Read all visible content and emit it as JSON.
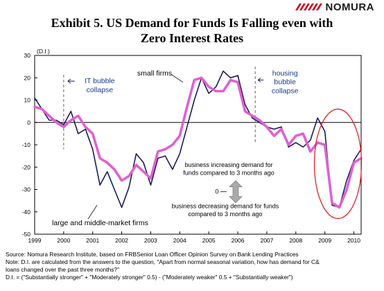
{
  "header": {
    "brand": "NOMURA",
    "title_line1": "Exhibit 5.  US Demand for Funds Is Falling even with",
    "title_line2": "Zero Interest Rates"
  },
  "notes": {
    "source": "Source: Nomura Research Institute, based on FRBSenior Loan Officer Opinion Survey on Bank Lending Practices",
    "note1": "Note: D.I. are calculated from the answers to the question, \"Apart from normal seasonal variation, how has demand for C&",
    "note2": "loans changed over the past three months?\"",
    "formula": "D.I. = (\"Substantially stronger\" + \"Moderately stronger\" 0.5) - (\"Moderately weaker\"   0.5 + \"Substantially weaker\")"
  },
  "chart_data": {
    "type": "line",
    "ylabel": "(D.I.)",
    "ylim": [
      -50,
      30
    ],
    "yticks": [
      30,
      20,
      10,
      0,
      -10,
      -20,
      -30,
      -40,
      -50
    ],
    "xlim": [
      1999.0,
      2010.25
    ],
    "xticks": [
      1999,
      2000,
      2001,
      2002,
      2003,
      2004,
      2005,
      2006,
      2007,
      2008,
      2009,
      2010
    ],
    "grid": false,
    "colors": {
      "large_firms": "#1a1a5e",
      "small_firms": "#e060d0",
      "highlight": "#dd2222"
    },
    "series": [
      {
        "name": "large and middle-market firms",
        "points": [
          [
            1999.0,
            11
          ],
          [
            1999.25,
            6
          ],
          [
            1999.5,
            1
          ],
          [
            1999.75,
            1
          ],
          [
            2000.0,
            -1
          ],
          [
            2000.25,
            5
          ],
          [
            2000.5,
            -5
          ],
          [
            2000.75,
            -3
          ],
          [
            2001.0,
            -12
          ],
          [
            2001.25,
            -28
          ],
          [
            2001.5,
            -22
          ],
          [
            2001.75,
            -30
          ],
          [
            2002.0,
            -38
          ],
          [
            2002.25,
            -29
          ],
          [
            2002.5,
            -14
          ],
          [
            2002.75,
            -18
          ],
          [
            2003.0,
            -28
          ],
          [
            2003.25,
            -16
          ],
          [
            2003.5,
            -15
          ],
          [
            2003.75,
            -21
          ],
          [
            2004.0,
            -14
          ],
          [
            2004.25,
            -2
          ],
          [
            2004.5,
            10
          ],
          [
            2004.75,
            20
          ],
          [
            2005.0,
            13
          ],
          [
            2005.25,
            16
          ],
          [
            2005.5,
            23
          ],
          [
            2005.75,
            20
          ],
          [
            2006.0,
            21
          ],
          [
            2006.25,
            8
          ],
          [
            2006.5,
            2
          ],
          [
            2006.75,
            0
          ],
          [
            2007.0,
            -2
          ],
          [
            2007.25,
            -3
          ],
          [
            2007.5,
            -2
          ],
          [
            2007.75,
            -11
          ],
          [
            2008.0,
            -9
          ],
          [
            2008.25,
            -11
          ],
          [
            2008.5,
            -8
          ],
          [
            2008.75,
            2
          ],
          [
            2009.0,
            -4
          ],
          [
            2009.25,
            -37
          ],
          [
            2009.5,
            -38
          ],
          [
            2009.75,
            -26
          ],
          [
            2010.0,
            -17
          ],
          [
            2010.25,
            -12
          ]
        ]
      },
      {
        "name": "small firms",
        "points": [
          [
            1999.0,
            7
          ],
          [
            1999.25,
            6
          ],
          [
            1999.5,
            3
          ],
          [
            1999.75,
            0
          ],
          [
            2000.0,
            -2
          ],
          [
            2000.25,
            1
          ],
          [
            2000.5,
            3
          ],
          [
            2000.75,
            -2
          ],
          [
            2001.0,
            -5
          ],
          [
            2001.25,
            -16
          ],
          [
            2001.5,
            -18
          ],
          [
            2001.75,
            -21
          ],
          [
            2002.0,
            -26
          ],
          [
            2002.25,
            -24
          ],
          [
            2002.5,
            -19
          ],
          [
            2002.75,
            -22
          ],
          [
            2003.0,
            -25
          ],
          [
            2003.25,
            -13
          ],
          [
            2003.5,
            -12
          ],
          [
            2003.75,
            -10
          ],
          [
            2004.0,
            -6
          ],
          [
            2004.25,
            7
          ],
          [
            2004.5,
            19
          ],
          [
            2004.75,
            20
          ],
          [
            2005.0,
            16
          ],
          [
            2005.25,
            14
          ],
          [
            2005.5,
            14
          ],
          [
            2005.75,
            19
          ],
          [
            2006.0,
            18
          ],
          [
            2006.25,
            5
          ],
          [
            2006.5,
            3
          ],
          [
            2006.75,
            1
          ],
          [
            2007.0,
            -2
          ],
          [
            2007.25,
            -6
          ],
          [
            2007.5,
            -3
          ],
          [
            2007.75,
            -10
          ],
          [
            2008.0,
            -6
          ],
          [
            2008.25,
            -5
          ],
          [
            2008.5,
            -13
          ],
          [
            2008.75,
            -9
          ],
          [
            2009.0,
            -10
          ],
          [
            2009.25,
            -36
          ],
          [
            2009.5,
            -38
          ],
          [
            2009.75,
            -30
          ],
          [
            2010.0,
            -18
          ],
          [
            2010.25,
            -16
          ]
        ]
      }
    ],
    "annotations": {
      "it_bubble": {
        "x": 2000.0,
        "line1": "IT bubble",
        "line2": "collapse"
      },
      "housing_bubble": {
        "x": 2006.6,
        "line1": "housing",
        "line2": "bubble",
        "line3": "collapse"
      },
      "small_firms_label": "small firms",
      "large_firms_label": "large and middle-market firms",
      "increasing_line1": "business increasing demand for",
      "increasing_line2": "funds compared to 3 months ago",
      "decreasing_line1": "business decreasing demand for funds",
      "decreasing_line2": "compared to 3 months ago",
      "zero_marker": "0"
    }
  }
}
